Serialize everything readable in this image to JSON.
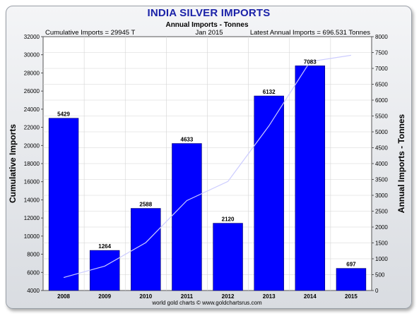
{
  "chart_data": {
    "type": "bar",
    "title": "INDIA SILVER IMPORTS",
    "subtitle": "Annual Imports - Tonnes",
    "annotations": {
      "left": "Cumulative Imports = 29945 T",
      "center": "Jan 2015",
      "right": "Latest Annual Imports = 696.531 Tonnes"
    },
    "footer": "world gold charts © www.goldchartsrus.com",
    "ylabel_left": "Cumulative Imports",
    "ylabel_right": "Annual Imports - Tonnes",
    "categories": [
      "2008",
      "2009",
      "2010",
      "2011",
      "2012",
      "2013",
      "2014",
      "2015"
    ],
    "series": [
      {
        "type": "bar",
        "axis": "right",
        "values": [
          5429,
          1264,
          2588,
          4633,
          2120,
          6132,
          7083,
          697
        ],
        "labels": [
          "5429",
          "1264",
          "2588",
          "4633",
          "2120",
          "6132",
          "7083",
          "697"
        ]
      },
      {
        "type": "line",
        "axis": "left",
        "values": [
          5429,
          6693,
          9281,
          13914,
          16034,
          22166,
          29249,
          29945
        ]
      }
    ],
    "ylim_left": [
      4000,
      32000
    ],
    "ylim_right": [
      0,
      8000
    ],
    "yticks_left": [
      "4000",
      "6000",
      "8000",
      "10000",
      "12000",
      "14000",
      "16000",
      "18000",
      "20000",
      "22000",
      "24000",
      "26000",
      "28000",
      "30000",
      "32000"
    ],
    "yticks_right": [
      "0",
      "500",
      "1000",
      "1500",
      "2000",
      "2500",
      "3000",
      "3500",
      "4000",
      "4500",
      "5000",
      "5500",
      "6000",
      "6500",
      "7000",
      "7500",
      "8000"
    ],
    "grid": true,
    "colors": {
      "bar": "#0000ff",
      "line": "#ccccff",
      "title": "#1b22a8",
      "grid": "#d4d4d4"
    }
  }
}
